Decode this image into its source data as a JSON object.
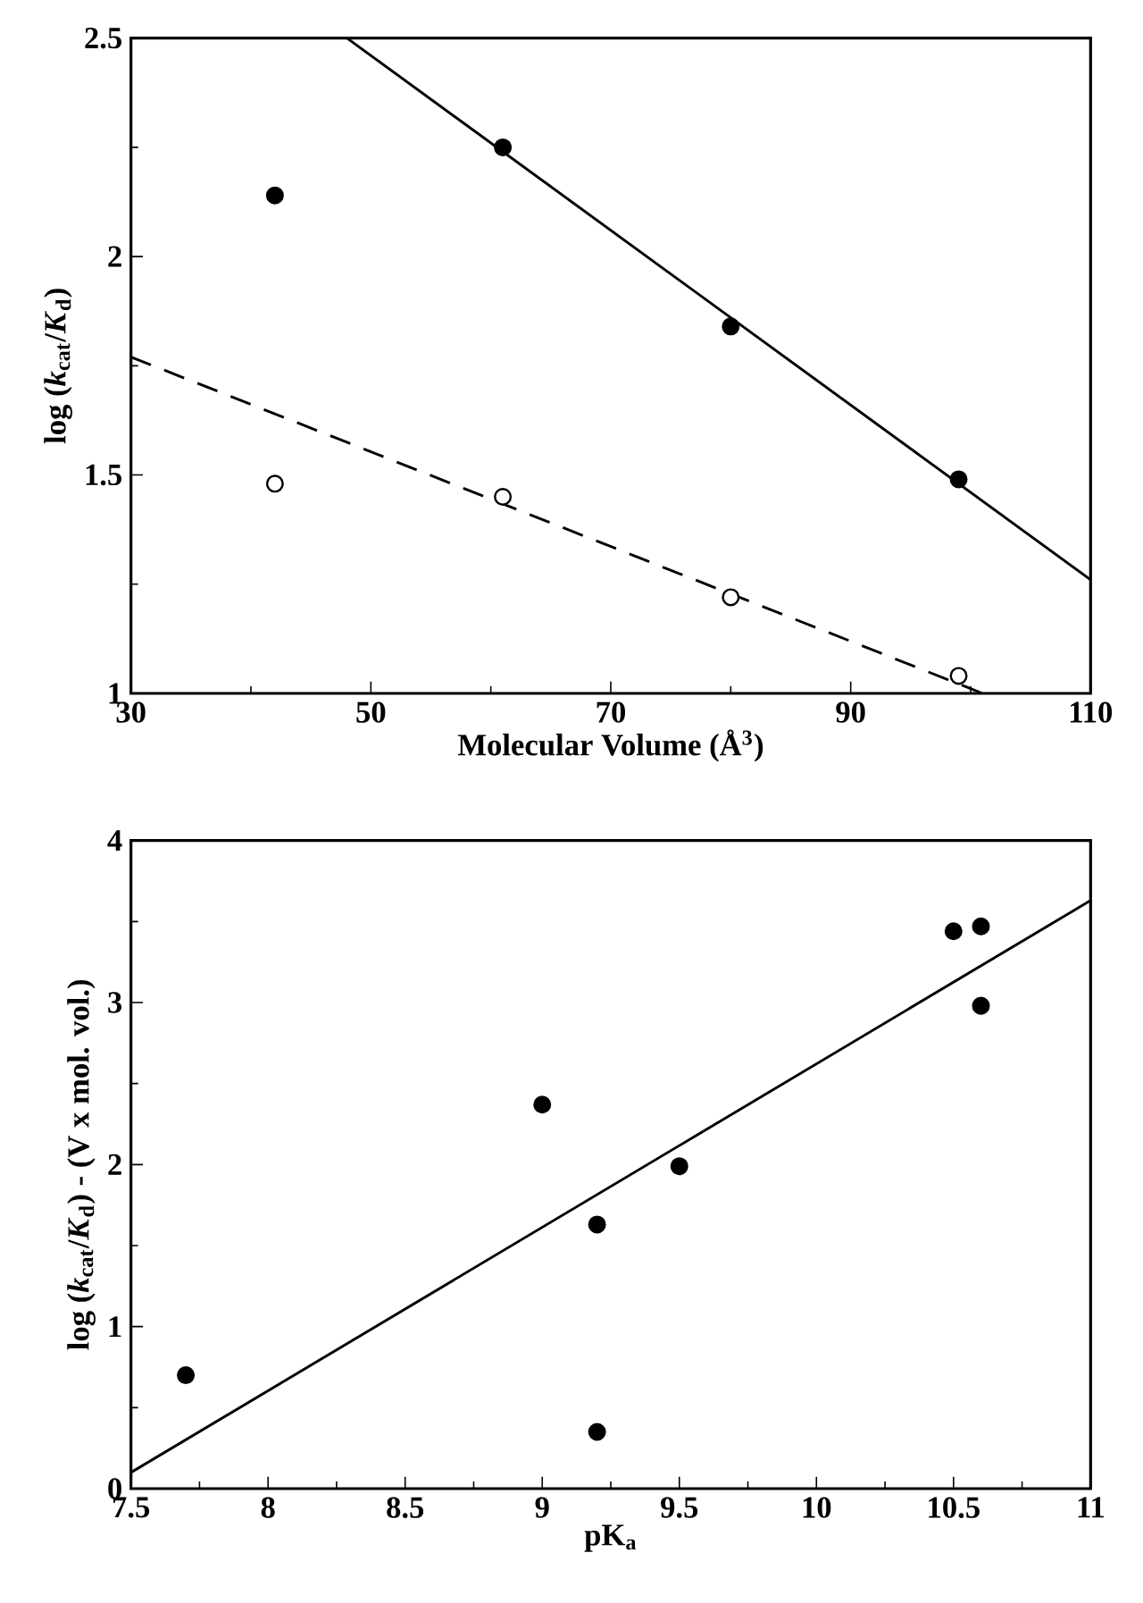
{
  "chart_data": [
    {
      "type": "scatter",
      "xlabel": "Molecular Volume (Å$^{3}$)",
      "ylabel": "log (*k*$_{cat}$/*K*$_{d}$)",
      "xlim": [
        30,
        110
      ],
      "ylim": [
        1,
        2.5
      ],
      "xticks": [
        30,
        50,
        70,
        90,
        110
      ],
      "yticks": [
        1,
        1.5,
        2,
        2.5
      ],
      "grid": false,
      "marker": "circle",
      "series": [
        {
          "color": "#000000",
          "x": [
            42,
            61,
            80,
            99
          ],
          "values": [
            2.14,
            2.25,
            1.84,
            1.49
          ]
        },
        {
          "color": "#ffffff",
          "x": [
            42,
            61,
            80,
            99
          ],
          "values": [
            1.48,
            1.45,
            1.22,
            1.04
          ]
        },
        {
          "type": "line",
          "color": "#000000",
          "line_style": "solid",
          "marker": "none",
          "x": [
            48,
            110
          ],
          "values": [
            2.5,
            1.26
          ]
        },
        {
          "type": "line",
          "color": "#000000",
          "line_style": "dashed",
          "marker": "none",
          "x": [
            30,
            101
          ],
          "values": [
            1.77,
            1.0
          ]
        }
      ]
    },
    {
      "type": "scatter",
      "xlabel": "pK$_{a}$",
      "ylabel": "log (*k*$_{cat}$/*K*$_{d}$) - (V x mol. vol.)",
      "xlim": [
        7.5,
        11
      ],
      "ylim": [
        0,
        4
      ],
      "xticks": [
        7.5,
        8,
        8.5,
        9,
        9.5,
        10,
        10.5,
        11
      ],
      "yticks": [
        0,
        1,
        2,
        3,
        4
      ],
      "grid": false,
      "marker": "circle",
      "series": [
        {
          "color": "#000000",
          "x": [
            7.7,
            9.0,
            9.2,
            9.2,
            9.5,
            10.5,
            10.6,
            10.6
          ],
          "values": [
            0.7,
            2.37,
            1.63,
            0.35,
            1.99,
            3.44,
            3.47,
            2.98
          ]
        },
        {
          "type": "line",
          "color": "#000000",
          "line_style": "solid",
          "marker": "none",
          "x": [
            7.5,
            11
          ],
          "values": [
            0.1,
            3.63
          ]
        }
      ]
    }
  ]
}
